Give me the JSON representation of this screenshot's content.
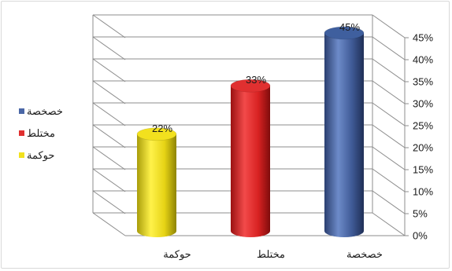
{
  "chart_data": {
    "type": "bar",
    "title": "",
    "xlabel": "",
    "ylabel": "",
    "categories": [
      "حوكمة",
      "مختلط",
      "خصخصة"
    ],
    "values": [
      22,
      33,
      45
    ],
    "value_labels": [
      "22%",
      "33%",
      "45%"
    ],
    "yticks": [
      "0%",
      "5%",
      "10%",
      "15%",
      "20%",
      "25%",
      "30%",
      "35%",
      "40%",
      "45%"
    ],
    "ylim": [
      0,
      45
    ],
    "grid": true,
    "legend_position": "left",
    "legend": [
      {
        "name": "خصخصة",
        "color": "#4a67a6"
      },
      {
        "name": "مختلط",
        "color": "#e03030"
      },
      {
        "name": "حوكمة",
        "color": "#f2e11e"
      }
    ],
    "colors": [
      "#f2e11e",
      "#e03030",
      "#3f5f9e"
    ]
  }
}
